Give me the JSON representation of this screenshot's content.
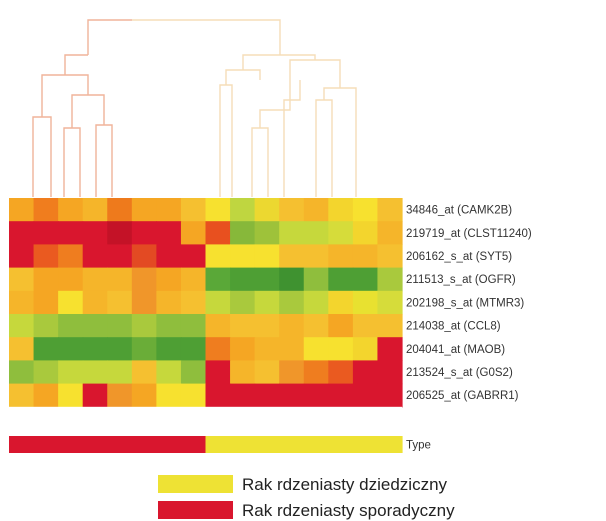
{
  "chart_data": {
    "type": "heatmap",
    "title": "",
    "columns": 16,
    "rows": [
      {
        "label": "34846_at (CAMK2B)",
        "colors": [
          "#f5a623",
          "#f07d1e",
          "#f5a623",
          "#f5b52a",
          "#ee7a1c",
          "#f5a623",
          "#f5a623",
          "#f5c030",
          "#f7e12f",
          "#bfd640",
          "#ecd830",
          "#f5c030",
          "#f5b52a",
          "#f3d52d",
          "#f7e12f",
          "#f5c030"
        ]
      },
      {
        "label": "219719_at (CLST11240)",
        "colors": [
          "#d9162e",
          "#d9162e",
          "#d9162e",
          "#d9162e",
          "#c41227",
          "#d9162e",
          "#d9162e",
          "#f5a623",
          "#e8501f",
          "#87b83a",
          "#9ec23a",
          "#c6d83c",
          "#c6d83c",
          "#d6dc3a",
          "#f3d52d",
          "#f5b52a"
        ]
      },
      {
        "label": "206162_s_at (SYT5)",
        "colors": [
          "#d9162e",
          "#ea5a20",
          "#ef7d1f",
          "#d9162e",
          "#d9162e",
          "#e34a23",
          "#d9162e",
          "#d9162e",
          "#f7e12f",
          "#f7e12f",
          "#f7e12f",
          "#f5c030",
          "#f5c030",
          "#f5b52a",
          "#f5b52a",
          "#f5c030"
        ]
      },
      {
        "label": "211513_s_at (OGFR)",
        "colors": [
          "#f5c030",
          "#f5a623",
          "#f5a623",
          "#f5b52a",
          "#f5b52a",
          "#f0962a",
          "#f5a623",
          "#f5b52a",
          "#5aa838",
          "#4e9f34",
          "#4e9f34",
          "#3f9230",
          "#8fbe3d",
          "#4e9f34",
          "#4e9f34",
          "#a9c93d"
        ]
      },
      {
        "label": "202198_s_at (MTMR3)",
        "colors": [
          "#f5b52a",
          "#f5a623",
          "#f7e12f",
          "#f5b52a",
          "#f5c030",
          "#f0962a",
          "#f5b52a",
          "#f5c030",
          "#c6d83c",
          "#a9c93d",
          "#c6d83c",
          "#a9c93d",
          "#c6d83c",
          "#f3d52d",
          "#e8e130",
          "#d6dc3a"
        ]
      },
      {
        "label": "214038_at (CCL8)",
        "colors": [
          "#c6d83c",
          "#a9c93d",
          "#8fbe3d",
          "#8fbe3d",
          "#8fbe3d",
          "#a9c93d",
          "#8fbe3d",
          "#8fbe3d",
          "#f5b52a",
          "#f5c030",
          "#f5c030",
          "#f5b52a",
          "#f5c030",
          "#f5a623",
          "#f5c030",
          "#f5c030"
        ]
      },
      {
        "label": "204041_at (MAOB)",
        "colors": [
          "#f5c030",
          "#4e9f34",
          "#4e9f34",
          "#4e9f34",
          "#4e9f34",
          "#6aad38",
          "#4e9f34",
          "#4e9f34",
          "#ef7d1f",
          "#f5a623",
          "#f5b52a",
          "#f5b52a",
          "#f7e12f",
          "#f7e12f",
          "#f3d52d",
          "#d9162e"
        ]
      },
      {
        "label": "213524_s_at (G0S2)",
        "colors": [
          "#8fbe3d",
          "#a9c93d",
          "#c6d83c",
          "#c6d83c",
          "#c6d83c",
          "#f5c030",
          "#c6d83c",
          "#8fbe3d",
          "#d9162e",
          "#f5b52a",
          "#f5c030",
          "#f0962a",
          "#ef7d1f",
          "#ea5a20",
          "#d9162e",
          "#d9162e"
        ]
      },
      {
        "label": "206525_at (GABRR1)",
        "colors": [
          "#f5c030",
          "#f5a623",
          "#f7e12f",
          "#d9162e",
          "#f0962a",
          "#f5a623",
          "#f7e12f",
          "#f7e12f",
          "#d9162e",
          "#d9162e",
          "#d9162e",
          "#d9162e",
          "#d9162e",
          "#d9162e",
          "#d9162e",
          "#d9162e"
        ]
      }
    ],
    "type_bar": {
      "label": "Type",
      "colors": [
        "#d9162e",
        "#d9162e",
        "#d9162e",
        "#d9162e",
        "#d9162e",
        "#d9162e",
        "#d9162e",
        "#d9162e",
        "#eee234",
        "#eee234",
        "#eee234",
        "#eee234",
        "#eee234",
        "#eee234",
        "#eee234",
        "#eee234"
      ]
    },
    "legend": [
      {
        "label": "Rak rdzeniasty dziedziczny",
        "color": "#eee234"
      },
      {
        "label": "Rak rdzeniasty sporadyczny",
        "color": "#d9162e"
      }
    ],
    "dendrogram_colors": {
      "left": "#f0b49a",
      "right": "#f6ddb8"
    }
  }
}
